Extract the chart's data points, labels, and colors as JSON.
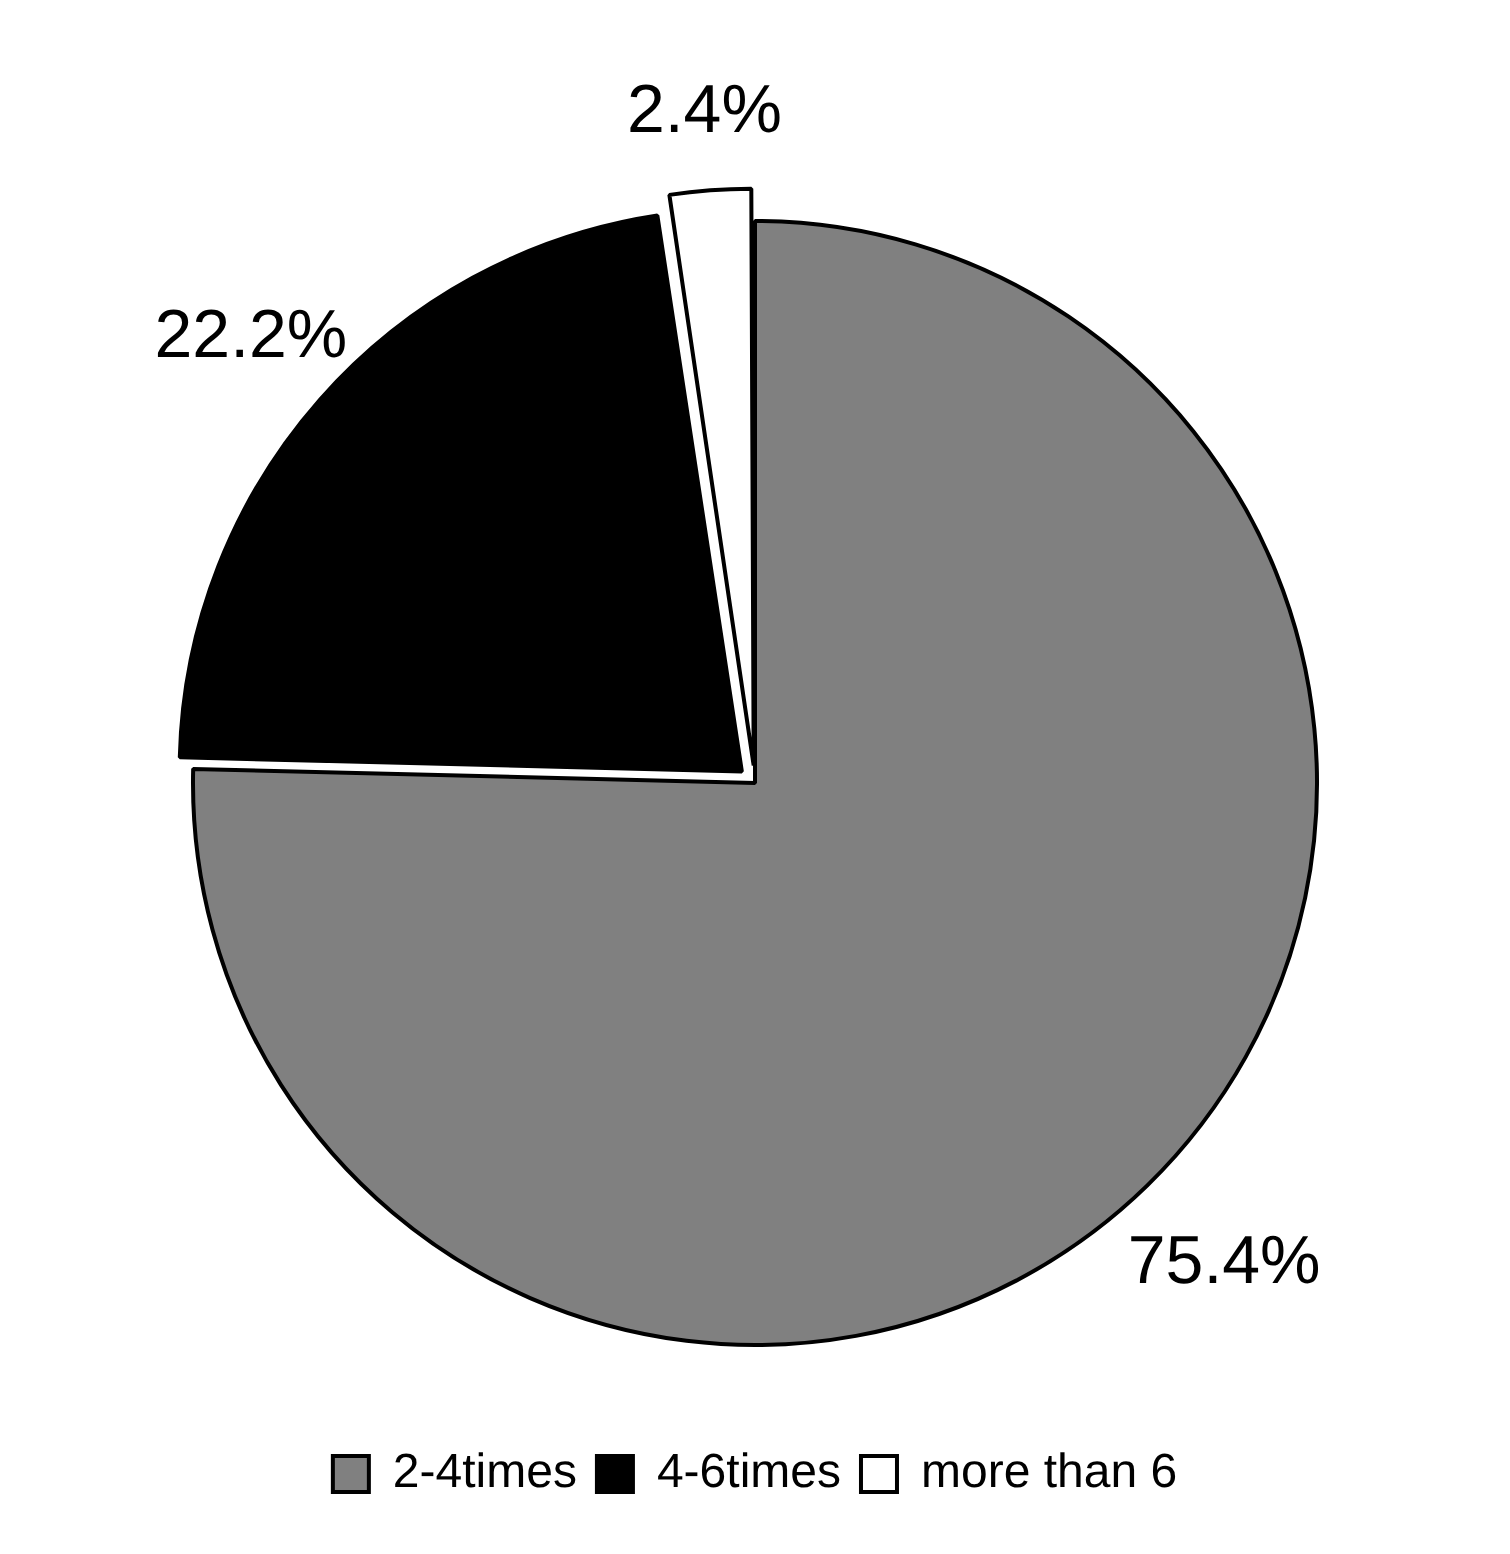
{
  "chart_data": {
    "type": "pie",
    "categories": [
      "2-4times",
      "4-6times",
      "more than 6"
    ],
    "values": [
      75.4,
      22.2,
      2.4
    ],
    "value_labels": [
      "75.4%",
      "22.2%",
      "2.4%"
    ],
    "colors": [
      "#808080",
      "#000000",
      "#ffffff"
    ],
    "legend": "bottom"
  }
}
